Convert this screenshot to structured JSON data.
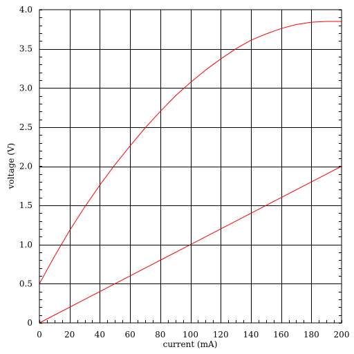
{
  "chart_data": {
    "type": "line",
    "title": "",
    "xlabel": "current (mA)",
    "ylabel": "voltage (V)",
    "xlim": [
      0,
      200
    ],
    "ylim": [
      0,
      4.0
    ],
    "xticks": [
      0,
      20,
      40,
      60,
      80,
      100,
      120,
      140,
      160,
      180,
      200
    ],
    "yticks": [
      0,
      0.5,
      1.0,
      1.5,
      2.0,
      2.5,
      3.0,
      3.5,
      4.0
    ],
    "xtick_labels": [
      "0",
      "20",
      "40",
      "60",
      "80",
      "100",
      "120",
      "140",
      "160",
      "180",
      "200"
    ],
    "ytick_labels": [
      "0",
      "0.5",
      "1.0",
      "1.5",
      "2.0",
      "2.5",
      "3.0",
      "3.5",
      "4.0"
    ],
    "grid": true,
    "line_color": "#ff0000",
    "series": [
      {
        "x": [
          0,
          10,
          20,
          30,
          40,
          50,
          60,
          70,
          80,
          90,
          100,
          110,
          120,
          130,
          140,
          150,
          160,
          170,
          180,
          190,
          200
        ],
        "values": [
          0.5,
          0.85,
          1.18,
          1.48,
          1.76,
          2.02,
          2.26,
          2.49,
          2.7,
          2.9,
          3.07,
          3.23,
          3.37,
          3.5,
          3.61,
          3.69,
          3.76,
          3.81,
          3.84,
          3.85,
          3.85
        ]
      },
      {
        "x": [
          0,
          200
        ],
        "values": [
          0.0,
          2.0
        ]
      }
    ]
  }
}
